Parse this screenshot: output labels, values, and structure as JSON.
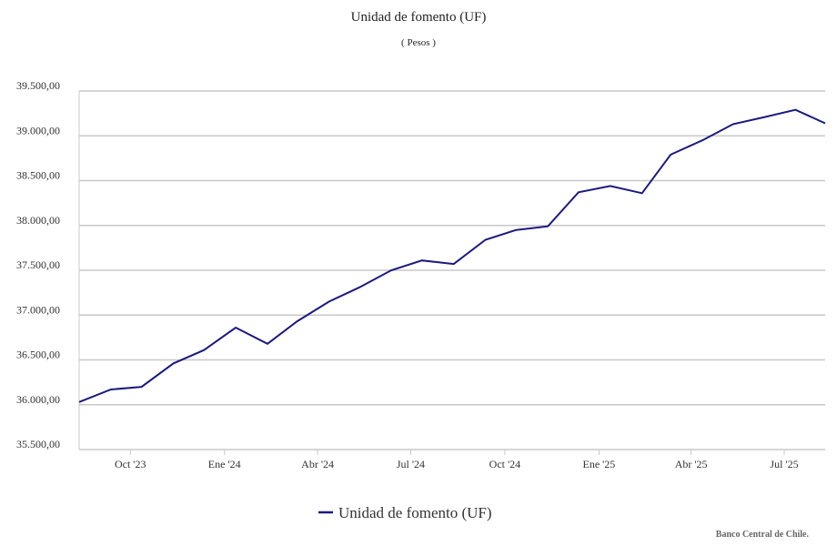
{
  "chart_data": {
    "type": "line",
    "title": "Unidad de fomento (UF)",
    "subtitle": "( Pesos )",
    "y_tick_labels": [
      "39.500,00",
      "39.000,00",
      "38.500,00",
      "38.000,00",
      "37.500,00",
      "37.000,00",
      "36.500,00",
      "36.000,00",
      "35.500,00"
    ],
    "y_ticks": [
      39500,
      39000,
      38500,
      38000,
      37500,
      37000,
      36500,
      36000,
      35500
    ],
    "ylim": [
      35500,
      39500
    ],
    "x_tick_labels": [
      "Oct '23",
      "Ene '24",
      "Abr '24",
      "Jul '24",
      "Oct '24",
      "Ene '25",
      "Abr '25",
      "Jul '25"
    ],
    "x_ticks": [
      "2023-10-01",
      "2024-01-01",
      "2024-04-01",
      "2024-07-01",
      "2024-10-01",
      "2025-01-01",
      "2025-04-01",
      "2025-07-01"
    ],
    "xlim": [
      "2023-08-12",
      "2025-08-10"
    ],
    "grid": true,
    "legend_position": "bottom-center",
    "series": [
      {
        "name": "Unidad de fomento (UF)",
        "color": "#1a1a80",
        "x": [
          "2023-08-12",
          "2023-09-12",
          "2023-10-12",
          "2023-11-12",
          "2023-12-12",
          "2024-01-12",
          "2024-02-12",
          "2024-03-12",
          "2024-04-12",
          "2024-05-12",
          "2024-06-12",
          "2024-07-12",
          "2024-08-12",
          "2024-09-12",
          "2024-10-12",
          "2024-11-12",
          "2024-12-12",
          "2025-01-12",
          "2025-02-12",
          "2025-03-12",
          "2025-04-12",
          "2025-05-12",
          "2025-06-12",
          "2025-07-12",
          "2025-08-10"
        ],
        "values": [
          36030,
          36170,
          36200,
          36460,
          36610,
          36860,
          36680,
          36930,
          37150,
          37310,
          37500,
          37610,
          37570,
          37840,
          37950,
          37990,
          38370,
          38440,
          38360,
          38790,
          38950,
          39130,
          39210,
          39290,
          39140
        ]
      }
    ]
  },
  "footer": {
    "credit": "Banco Central de Chile."
  }
}
